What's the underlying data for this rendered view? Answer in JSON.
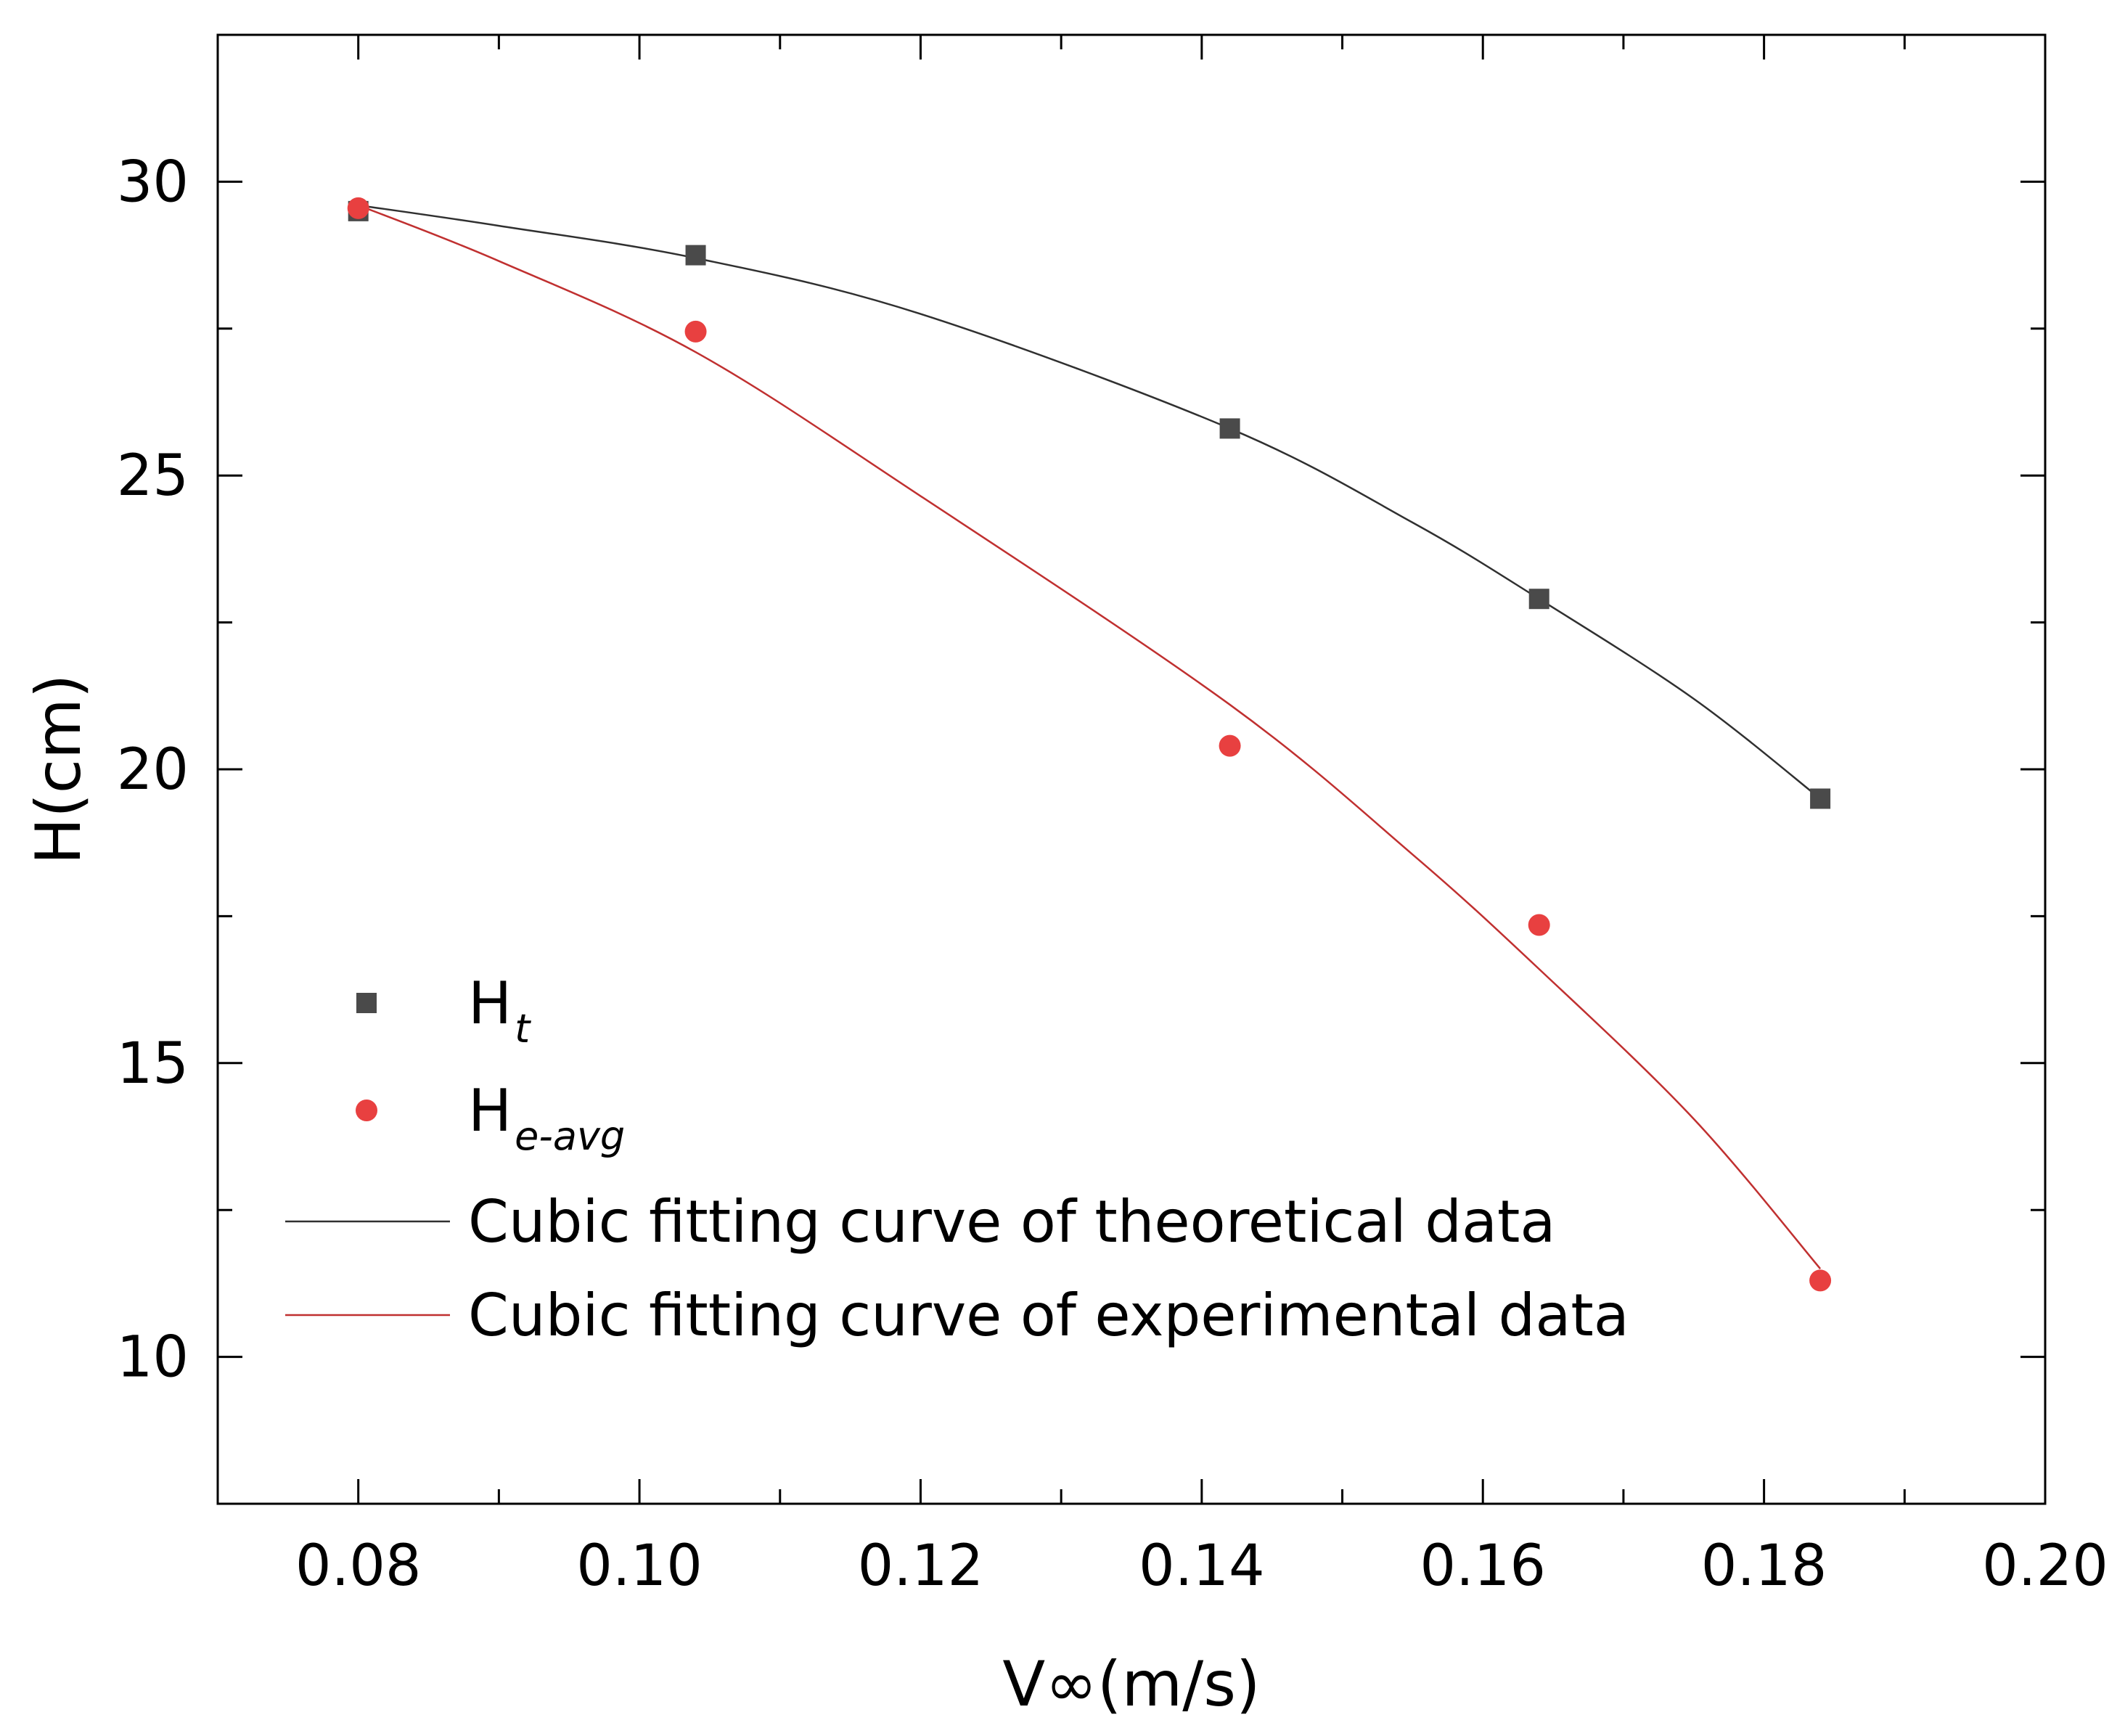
{
  "chart_data": {
    "type": "scatter",
    "title": "",
    "xlabel": "V∞(m/s)",
    "ylabel": "H(cm)",
    "xlim": [
      0.07,
      0.2
    ],
    "ylim": [
      7.5,
      32.5
    ],
    "x_ticks": [
      0.08,
      0.1,
      0.12,
      0.14,
      0.16,
      0.18,
      0.2
    ],
    "x_tick_labels": [
      "0.08",
      "0.10",
      "0.12",
      "0.14",
      "0.16",
      "0.18",
      "0.20"
    ],
    "y_ticks": [
      10,
      15,
      20,
      25,
      30
    ],
    "y_tick_labels": [
      "10",
      "15",
      "20",
      "25",
      "30"
    ],
    "grid": false,
    "legend_position": "lower-left",
    "series": [
      {
        "name": "H_t",
        "label_main": "H",
        "label_sub": "t",
        "marker": "square",
        "color": "#4a4a4a",
        "x": [
          0.08,
          0.104,
          0.142,
          0.164,
          0.184
        ],
        "y": [
          29.5,
          28.75,
          25.8,
          22.9,
          19.5
        ]
      },
      {
        "name": "H_e-avg",
        "label_main": "H",
        "label_sub": "e-avg",
        "marker": "circle",
        "color": "#e84040",
        "x": [
          0.08,
          0.104,
          0.142,
          0.164,
          0.184
        ],
        "y": [
          29.55,
          27.45,
          20.4,
          17.35,
          11.3
        ]
      }
    ],
    "fit_curves": [
      {
        "name": "Cubic fitting curve of theoretical data",
        "color": "#303030",
        "x": [
          0.08,
          0.09,
          0.104,
          0.12,
          0.142,
          0.155,
          0.164,
          0.175,
          0.184
        ],
        "y": [
          29.6,
          29.25,
          28.7,
          27.75,
          25.8,
          24.2,
          22.9,
          21.2,
          19.5
        ]
      },
      {
        "name": "Cubic fitting curve of experimental data",
        "color": "#c03030",
        "x": [
          0.08,
          0.09,
          0.104,
          0.12,
          0.142,
          0.155,
          0.164,
          0.175,
          0.184
        ],
        "y": [
          29.6,
          28.65,
          27.1,
          24.65,
          21.1,
          18.55,
          16.6,
          14.05,
          11.5
        ]
      }
    ]
  }
}
